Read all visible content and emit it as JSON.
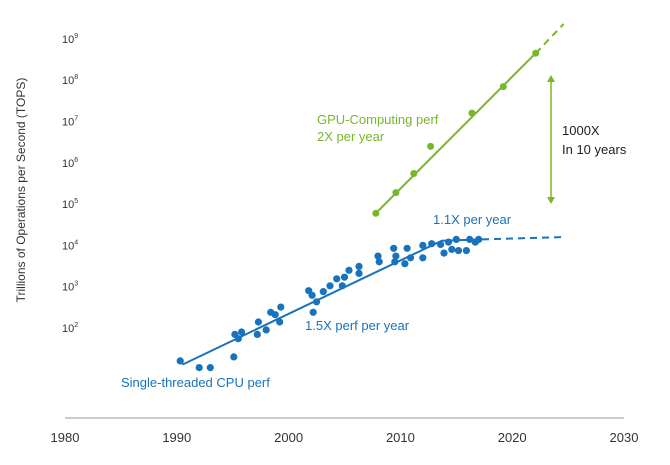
{
  "chart_data": {
    "type": "scatter",
    "title": "",
    "xlabel": "",
    "ylabel": "Trillions of Operations per Second (TOPS)",
    "xlim": [
      1980,
      2030
    ],
    "ylim_log10": [
      0.3,
      9.5
    ],
    "y_scale": "log",
    "x_ticks": [
      "1980",
      "1990",
      "2000",
      "2010",
      "2020",
      "2030"
    ],
    "y_ticks": [
      {
        "base": "10",
        "exp": "2",
        "value": 100
      },
      {
        "base": "10",
        "exp": "3",
        "value": 1000
      },
      {
        "base": "10",
        "exp": "4",
        "value": 10000
      },
      {
        "base": "10",
        "exp": "5",
        "value": 100000
      },
      {
        "base": "10",
        "exp": "6",
        "value": 1000000
      },
      {
        "base": "10",
        "exp": "7",
        "value": 10000000
      },
      {
        "base": "10",
        "exp": "8",
        "value": 100000000
      },
      {
        "base": "10",
        "exp": "9",
        "value": 1000000000
      }
    ],
    "series": [
      {
        "name": "GPU-Computing perf",
        "color": "#76b82a",
        "points": [
          [
            2007.8,
            60000
          ],
          [
            2009.6,
            190000
          ],
          [
            2011.2,
            550000
          ],
          [
            2012.7,
            2500000
          ],
          [
            2016.4,
            16000000
          ],
          [
            2019.2,
            70000000
          ],
          [
            2022.1,
            450000000
          ]
        ],
        "trend": {
          "solid": [
            [
              2007.8,
              60000
            ],
            [
              2022.1,
              450000000
            ]
          ],
          "dashed": [
            [
              2022.1,
              450000000
            ],
            [
              2024.6,
              2300000000
            ]
          ]
        }
      },
      {
        "name": "Single-threaded CPU perf",
        "color": "#1873bc",
        "points": [
          [
            1990.3,
            16
          ],
          [
            1992.0,
            11
          ],
          [
            1993.0,
            11
          ],
          [
            1995.1,
            20
          ],
          [
            1995.2,
            70
          ],
          [
            1995.5,
            55
          ],
          [
            1995.8,
            80
          ],
          [
            1997.2,
            70
          ],
          [
            1997.3,
            140
          ],
          [
            1998.0,
            90
          ],
          [
            1998.4,
            240
          ],
          [
            1998.8,
            210
          ],
          [
            1999.3,
            320
          ],
          [
            1999.2,
            140
          ],
          [
            2001.8,
            800
          ],
          [
            2002.1,
            620
          ],
          [
            2002.5,
            430
          ],
          [
            2002.2,
            240
          ],
          [
            2003.1,
            760
          ],
          [
            2003.7,
            1050
          ],
          [
            2004.3,
            1550
          ],
          [
            2004.8,
            1050
          ],
          [
            2005.0,
            1700
          ],
          [
            2005.4,
            2500
          ],
          [
            2006.3,
            2100
          ],
          [
            2006.3,
            3100
          ],
          [
            2008.0,
            5500
          ],
          [
            2008.1,
            4000
          ],
          [
            2009.4,
            8500
          ],
          [
            2009.5,
            4000
          ],
          [
            2009.6,
            5500
          ],
          [
            2010.4,
            3600
          ],
          [
            2010.6,
            8500
          ],
          [
            2010.9,
            5000
          ],
          [
            2012.0,
            5000
          ],
          [
            2012.0,
            10000
          ],
          [
            2012.8,
            11000
          ],
          [
            2013.6,
            10500
          ],
          [
            2013.9,
            6500
          ],
          [
            2014.3,
            12000
          ],
          [
            2014.6,
            8000
          ],
          [
            2015.0,
            14000
          ],
          [
            2015.2,
            7500
          ],
          [
            2015.9,
            7500
          ],
          [
            2016.2,
            14000
          ],
          [
            2016.7,
            12000
          ],
          [
            2017.0,
            14000
          ]
        ],
        "trend": {
          "solid": [
            [
              1990.5,
              13
            ],
            [
              2013.7,
              13000
            ],
            [
              2017.3,
              14000
            ]
          ],
          "dashed": [
            [
              2017.3,
              14000
            ],
            [
              2024.8,
              16000
            ]
          ]
        }
      }
    ],
    "annotations": [
      {
        "lines": [
          "GPU-Computing perf",
          "2X per year"
        ],
        "color": "#76b82a"
      },
      {
        "lines": [
          "1000X",
          "In 10 years"
        ],
        "color": "#1f1f1f"
      },
      {
        "lines": [
          "1.1X per year"
        ],
        "color": "#1873bc"
      },
      {
        "lines": [
          "1.5X perf per year"
        ],
        "color": "#1873bc"
      },
      {
        "lines": [
          "Single-threaded CPU perf"
        ],
        "color": "#1873bc"
      }
    ],
    "arrow_color": "#76b82a",
    "axis_color": "#999999",
    "grid": false,
    "legend": "none"
  }
}
